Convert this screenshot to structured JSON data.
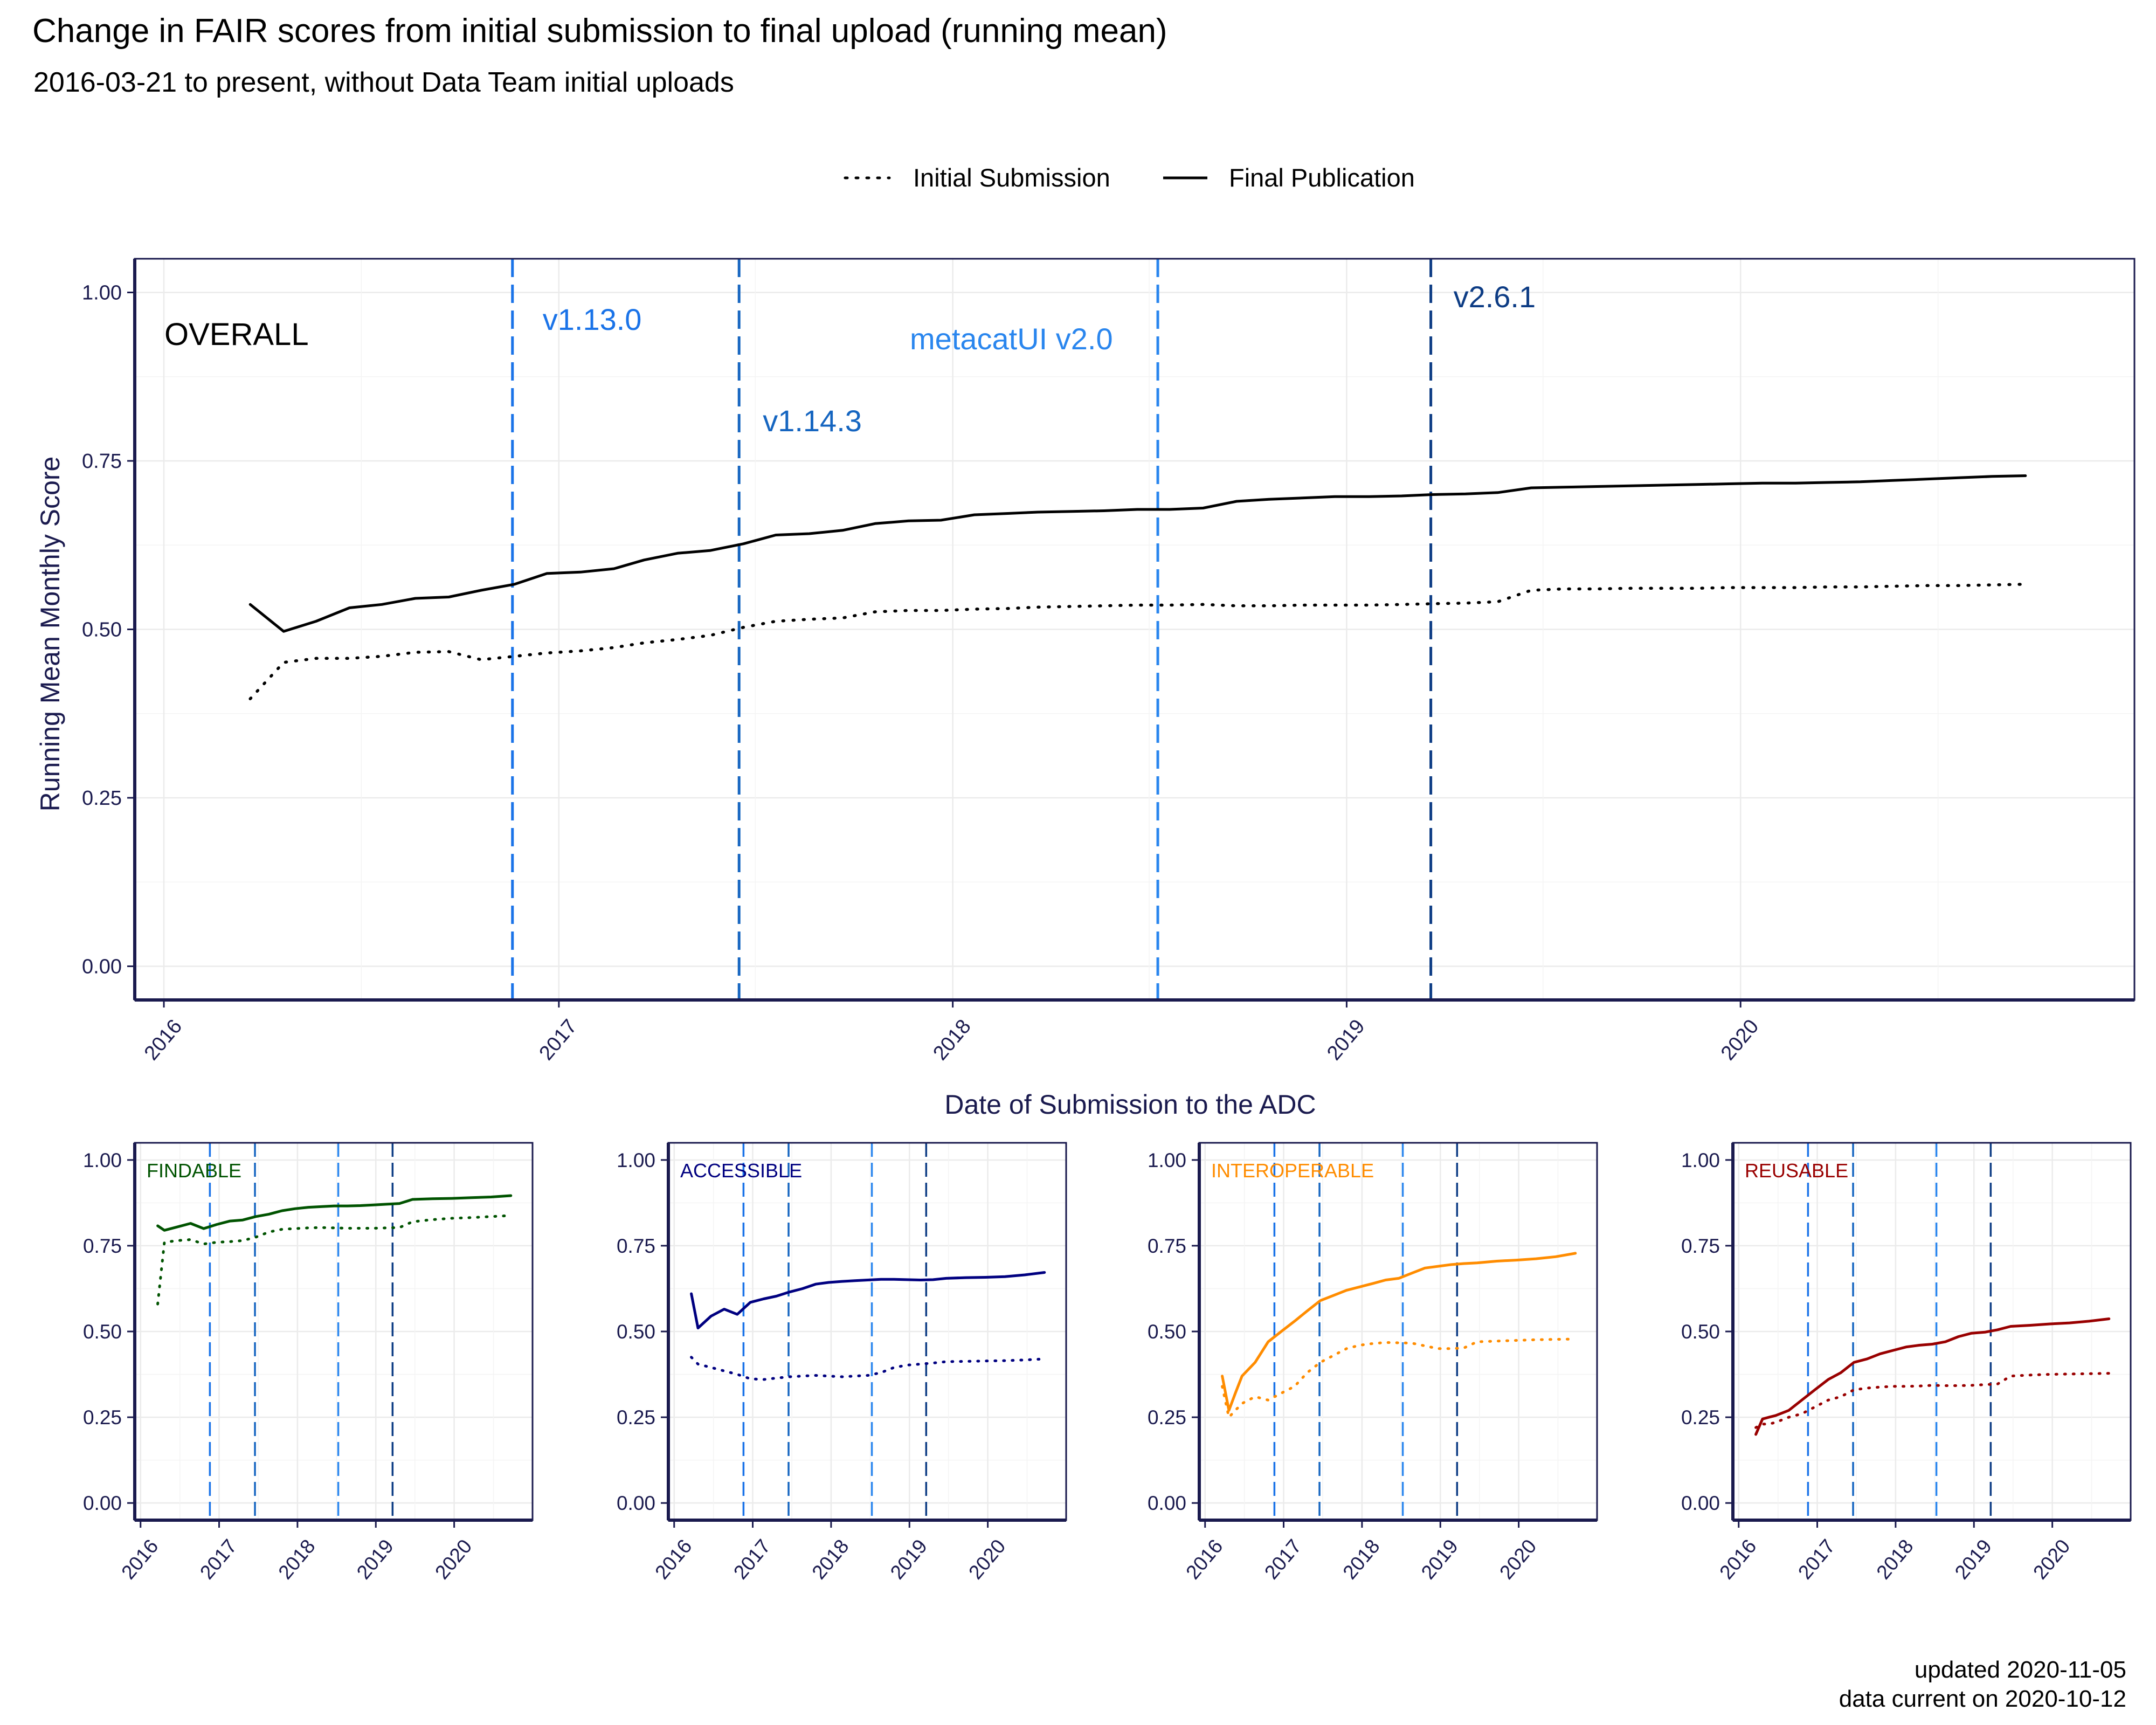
{
  "chart_data": {
    "type": "line",
    "title": "Change in FAIR scores from initial submission to final upload (running mean)",
    "subtitle": "2016-03-21 to present, without Data Team initial uploads",
    "legend": {
      "placement": "top",
      "items": [
        {
          "name": "Initial Submission",
          "linestyle": "dotted"
        },
        {
          "name": "Final Publication",
          "linestyle": "solid"
        }
      ]
    },
    "xlabel": "Date of Submission to the ADC",
    "ylabel": "Running Mean Monthly Score",
    "grid": true,
    "caption": [
      "updated 2020-11-05",
      "data current on 2020-10-12"
    ],
    "version_markers": [
      {
        "label": "v1.13.0",
        "date": "2016-11-19",
        "color": "#1a73e8"
      },
      {
        "label": "v1.14.3",
        "date": "2017-06-17",
        "color": "#1565c0"
      },
      {
        "label": "metacatUI v2.0",
        "date": "2018-07-10",
        "color": "#2a86ee"
      },
      {
        "label": "v2.6.1",
        "date": "2019-03-20",
        "color": "#0d3c84"
      }
    ],
    "panels": [
      {
        "label": "OVERALL",
        "color": "#000000",
        "xlim": [
          "2015-12-05",
          "2020-12-31"
        ],
        "ylim": [
          -0.05,
          1.05
        ],
        "xticks": [
          "2016",
          "2017",
          "2018",
          "2019",
          "2020"
        ],
        "yticks": [
          "0.00",
          "0.25",
          "0.50",
          "0.75",
          "1.00"
        ],
        "x": [
          "2016-03-21",
          "2016-04-21",
          "2016-05-21",
          "2016-06-21",
          "2016-07-21",
          "2016-08-21",
          "2016-09-21",
          "2016-10-21",
          "2016-11-21",
          "2016-12-21",
          "2017-01-21",
          "2017-02-21",
          "2017-03-21",
          "2017-04-21",
          "2017-05-21",
          "2017-06-21",
          "2017-07-21",
          "2017-08-21",
          "2017-09-21",
          "2017-10-21",
          "2017-11-21",
          "2017-12-21",
          "2018-01-21",
          "2018-02-21",
          "2018-03-21",
          "2018-04-21",
          "2018-05-21",
          "2018-06-21",
          "2018-07-21",
          "2018-08-21",
          "2018-09-21",
          "2018-10-21",
          "2018-11-21",
          "2018-12-21",
          "2019-01-21",
          "2019-02-21",
          "2019-03-21",
          "2019-04-21",
          "2019-05-21",
          "2019-06-21",
          "2019-07-21",
          "2019-08-21",
          "2019-09-21",
          "2019-10-21",
          "2019-11-21",
          "2019-12-21",
          "2020-01-21",
          "2020-02-21",
          "2020-03-21",
          "2020-04-21",
          "2020-05-21",
          "2020-06-21",
          "2020-07-21",
          "2020-08-21",
          "2020-09-21"
        ],
        "series": [
          {
            "name": "Final Publication",
            "linestyle": "solid",
            "values": [
              0.537,
              0.497,
              0.512,
              0.532,
              0.537,
              0.546,
              0.548,
              0.558,
              0.567,
              0.583,
              0.585,
              0.59,
              0.603,
              0.613,
              0.617,
              0.627,
              0.64,
              0.642,
              0.647,
              0.657,
              0.661,
              0.662,
              0.67,
              0.672,
              0.674,
              0.675,
              0.676,
              0.678,
              0.678,
              0.68,
              0.69,
              0.693,
              0.695,
              0.697,
              0.697,
              0.698,
              0.7,
              0.701,
              0.703,
              0.71,
              0.711,
              0.712,
              0.713,
              0.714,
              0.715,
              0.716,
              0.717,
              0.717,
              0.718,
              0.719,
              0.721,
              0.723,
              0.725,
              0.727,
              0.728
            ]
          },
          {
            "name": "Initial Submission",
            "linestyle": "dotted",
            "values": [
              0.397,
              0.451,
              0.457,
              0.457,
              0.46,
              0.466,
              0.467,
              0.455,
              0.46,
              0.465,
              0.468,
              0.473,
              0.48,
              0.485,
              0.491,
              0.503,
              0.512,
              0.515,
              0.517,
              0.526,
              0.528,
              0.528,
              0.53,
              0.531,
              0.533,
              0.534,
              0.535,
              0.536,
              0.536,
              0.537,
              0.535,
              0.535,
              0.536,
              0.536,
              0.536,
              0.537,
              0.538,
              0.539,
              0.541,
              0.558,
              0.56,
              0.56,
              0.561,
              0.561,
              0.561,
              0.562,
              0.562,
              0.562,
              0.563,
              0.563,
              0.564,
              0.565,
              0.565,
              0.566,
              0.567
            ]
          }
        ]
      },
      {
        "label": "FINDABLE",
        "color": "#005300",
        "xlim": [
          "2015-12-05",
          "2020-12-31"
        ],
        "ylim": [
          -0.05,
          1.05
        ],
        "xticks": [
          "2016",
          "2017",
          "2018",
          "2019",
          "2020"
        ],
        "yticks": [
          "0.00",
          "0.25",
          "0.50",
          "0.75",
          "1.00"
        ],
        "x": [
          "2016-03-21",
          "2016-04-21",
          "2016-06-21",
          "2016-08-21",
          "2016-10-21",
          "2016-12-21",
          "2017-02-21",
          "2017-04-21",
          "2017-06-21",
          "2017-08-21",
          "2017-10-21",
          "2017-12-21",
          "2018-02-21",
          "2018-04-21",
          "2018-06-21",
          "2018-08-21",
          "2018-10-21",
          "2018-12-21",
          "2019-02-21",
          "2019-04-21",
          "2019-06-21",
          "2019-09-21",
          "2019-12-21",
          "2020-03-21",
          "2020-06-21",
          "2020-09-21"
        ],
        "series": [
          {
            "name": "Final Publication",
            "linestyle": "solid",
            "values": [
              0.808,
              0.795,
              0.805,
              0.815,
              0.8,
              0.812,
              0.822,
              0.825,
              0.835,
              0.842,
              0.852,
              0.858,
              0.862,
              0.864,
              0.866,
              0.866,
              0.867,
              0.869,
              0.871,
              0.873,
              0.885,
              0.887,
              0.888,
              0.89,
              0.892,
              0.896
            ]
          },
          {
            "name": "Initial Submission",
            "linestyle": "dotted",
            "values": [
              0.58,
              0.76,
              0.765,
              0.768,
              0.755,
              0.76,
              0.762,
              0.765,
              0.775,
              0.79,
              0.798,
              0.8,
              0.802,
              0.803,
              0.802,
              0.801,
              0.801,
              0.801,
              0.802,
              0.803,
              0.82,
              0.826,
              0.83,
              0.832,
              0.835,
              0.838
            ]
          }
        ]
      },
      {
        "label": "ACCESSIBLE",
        "color": "#000080",
        "xlim": [
          "2015-12-05",
          "2020-12-31"
        ],
        "ylim": [
          -0.05,
          1.05
        ],
        "xticks": [
          "2016",
          "2017",
          "2018",
          "2019",
          "2020"
        ],
        "yticks": [
          "0.00",
          "0.25",
          "0.50",
          "0.75",
          "1.00"
        ],
        "x": [
          "2016-03-21",
          "2016-04-21",
          "2016-06-21",
          "2016-08-21",
          "2016-10-21",
          "2016-12-21",
          "2017-02-21",
          "2017-04-21",
          "2017-06-21",
          "2017-08-21",
          "2017-10-21",
          "2017-12-21",
          "2018-02-21",
          "2018-04-21",
          "2018-06-21",
          "2018-08-21",
          "2018-10-21",
          "2018-12-21",
          "2019-02-21",
          "2019-04-21",
          "2019-06-21",
          "2019-09-21",
          "2019-12-21",
          "2020-03-21",
          "2020-06-21",
          "2020-09-21"
        ],
        "series": [
          {
            "name": "Final Publication",
            "linestyle": "solid",
            "values": [
              0.61,
              0.51,
              0.545,
              0.565,
              0.55,
              0.585,
              0.595,
              0.603,
              0.615,
              0.625,
              0.638,
              0.643,
              0.646,
              0.648,
              0.65,
              0.652,
              0.652,
              0.651,
              0.65,
              0.651,
              0.655,
              0.657,
              0.658,
              0.66,
              0.665,
              0.672
            ]
          },
          {
            "name": "Initial Submission",
            "linestyle": "dotted",
            "values": [
              0.425,
              0.405,
              0.395,
              0.385,
              0.375,
              0.362,
              0.36,
              0.364,
              0.368,
              0.37,
              0.372,
              0.37,
              0.368,
              0.37,
              0.372,
              0.38,
              0.395,
              0.402,
              0.405,
              0.408,
              0.412,
              0.413,
              0.414,
              0.415,
              0.417,
              0.42
            ]
          }
        ]
      },
      {
        "label": "INTEROPERABLE",
        "color": "#ff8c00",
        "xlim": [
          "2015-12-05",
          "2020-12-31"
        ],
        "ylim": [
          -0.05,
          1.05
        ],
        "xticks": [
          "2016",
          "2017",
          "2018",
          "2019",
          "2020"
        ],
        "yticks": [
          "0.00",
          "0.25",
          "0.50",
          "0.75",
          "1.00"
        ],
        "x": [
          "2016-03-21",
          "2016-04-21",
          "2016-05-21",
          "2016-06-21",
          "2016-08-21",
          "2016-10-21",
          "2016-12-21",
          "2017-02-21",
          "2017-04-21",
          "2017-06-21",
          "2017-08-21",
          "2017-10-21",
          "2017-12-21",
          "2018-02-21",
          "2018-04-21",
          "2018-06-21",
          "2018-08-21",
          "2018-10-21",
          "2018-12-21",
          "2019-02-21",
          "2019-04-21",
          "2019-06-21",
          "2019-09-21",
          "2019-12-21",
          "2020-03-21",
          "2020-06-21",
          "2020-09-21"
        ],
        "series": [
          {
            "name": "Final Publication",
            "linestyle": "solid",
            "values": [
              0.37,
              0.27,
              0.32,
              0.37,
              0.41,
              0.47,
              0.5,
              0.53,
              0.56,
              0.59,
              0.605,
              0.62,
              0.63,
              0.64,
              0.65,
              0.655,
              0.67,
              0.685,
              0.69,
              0.695,
              0.698,
              0.7,
              0.705,
              0.708,
              0.712,
              0.718,
              0.728
            ]
          },
          {
            "name": "Initial Submission",
            "linestyle": "dotted",
            "values": [
              0.34,
              0.25,
              0.27,
              0.29,
              0.31,
              0.3,
              0.32,
              0.34,
              0.38,
              0.41,
              0.43,
              0.45,
              0.46,
              0.465,
              0.468,
              0.467,
              0.466,
              0.458,
              0.45,
              0.45,
              0.452,
              0.47,
              0.472,
              0.474,
              0.476,
              0.477,
              0.478
            ]
          }
        ]
      },
      {
        "label": "REUSABLE",
        "color": "#990000",
        "xlim": [
          "2015-12-05",
          "2020-12-31"
        ],
        "ylim": [
          -0.05,
          1.05
        ],
        "xticks": [
          "2016",
          "2017",
          "2018",
          "2019",
          "2020"
        ],
        "yticks": [
          "0.00",
          "0.25",
          "0.50",
          "0.75",
          "1.00"
        ],
        "x": [
          "2016-03-21",
          "2016-04-21",
          "2016-05-21",
          "2016-06-21",
          "2016-08-21",
          "2016-10-21",
          "2016-12-21",
          "2017-02-21",
          "2017-04-21",
          "2017-06-21",
          "2017-08-21",
          "2017-10-21",
          "2017-12-21",
          "2018-02-21",
          "2018-04-21",
          "2018-06-21",
          "2018-08-21",
          "2018-10-21",
          "2018-12-21",
          "2019-02-21",
          "2019-04-21",
          "2019-06-21",
          "2019-09-21",
          "2019-12-21",
          "2020-03-21",
          "2020-06-21",
          "2020-09-21"
        ],
        "series": [
          {
            "name": "Final Publication",
            "linestyle": "solid",
            "values": [
              0.2,
              0.245,
              0.25,
              0.255,
              0.27,
              0.3,
              0.33,
              0.36,
              0.38,
              0.41,
              0.42,
              0.435,
              0.445,
              0.455,
              0.46,
              0.463,
              0.47,
              0.485,
              0.495,
              0.498,
              0.505,
              0.515,
              0.518,
              0.522,
              0.525,
              0.53,
              0.537
            ]
          },
          {
            "name": "Initial Submission",
            "linestyle": "dotted",
            "values": [
              0.22,
              0.23,
              0.23,
              0.235,
              0.25,
              0.26,
              0.28,
              0.3,
              0.31,
              0.33,
              0.335,
              0.338,
              0.34,
              0.34,
              0.341,
              0.343,
              0.342,
              0.342,
              0.343,
              0.345,
              0.347,
              0.37,
              0.373,
              0.375,
              0.376,
              0.377,
              0.378
            ]
          }
        ]
      }
    ]
  }
}
